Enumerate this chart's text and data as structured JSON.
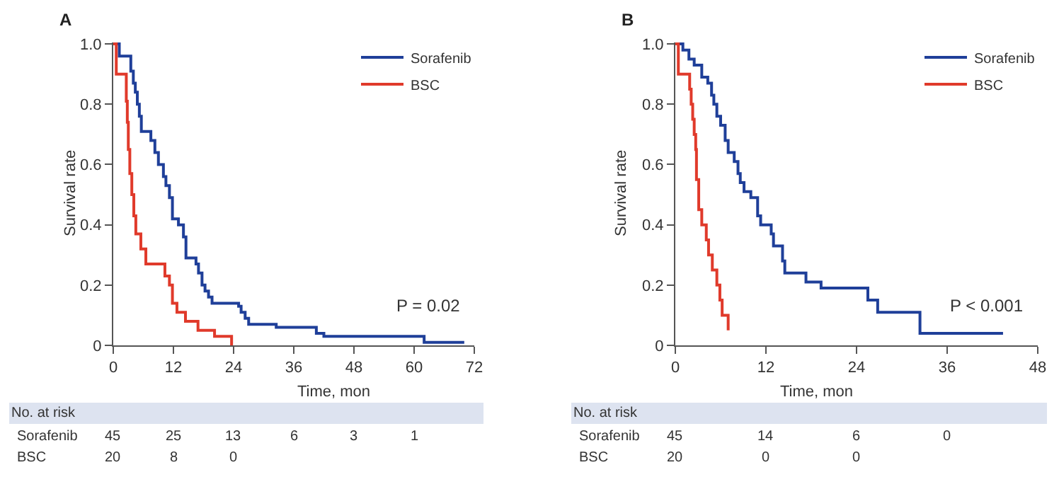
{
  "chart_data": [
    {
      "type": "step",
      "title": "A",
      "xlabel": "Time, mon",
      "ylabel": "Survival rate",
      "xlim": [
        0,
        72
      ],
      "xticks": [
        0,
        12,
        24,
        36,
        48,
        60,
        72
      ],
      "ylim": [
        0,
        1.0
      ],
      "yticks": [
        0,
        0.2,
        0.4,
        0.6,
        0.8,
        {
          "value": 1.0,
          "label": "1.0"
        }
      ],
      "grid": false,
      "legend": "top right",
      "marker": "none",
      "line_style": "solid",
      "series": [
        {
          "name": "Sorafenib",
          "color": "#1f3f99",
          "x": [
            0,
            1.2,
            3.5,
            4.0,
            4.4,
            4.8,
            5.2,
            5.6,
            7.5,
            8.3,
            9.0,
            10.0,
            10.5,
            11.2,
            11.8,
            13.0,
            14.0,
            14.5,
            16.5,
            17.0,
            17.7,
            18.3,
            19.0,
            19.7,
            25.0,
            25.5,
            26.3,
            27.0,
            32.5,
            40.5,
            42.0,
            62.0,
            70.0
          ],
          "values": [
            1.0,
            0.96,
            0.91,
            0.87,
            0.84,
            0.8,
            0.76,
            0.71,
            0.68,
            0.64,
            0.6,
            0.56,
            0.53,
            0.49,
            0.42,
            0.4,
            0.36,
            0.29,
            0.27,
            0.24,
            0.2,
            0.18,
            0.16,
            0.14,
            0.13,
            0.11,
            0.09,
            0.07,
            0.06,
            0.04,
            0.03,
            0.01,
            0.01
          ]
        },
        {
          "name": "BSC",
          "color": "#e03a2b",
          "x": [
            0,
            0.6,
            2.6,
            2.8,
            3.0,
            3.3,
            3.7,
            4.1,
            4.5,
            5.5,
            6.5,
            10.3,
            11.2,
            11.8,
            12.7,
            14.4,
            16.9,
            20.2,
            23.6
          ],
          "values": [
            1.0,
            0.9,
            0.81,
            0.74,
            0.65,
            0.57,
            0.5,
            0.43,
            0.37,
            0.32,
            0.27,
            0.23,
            0.2,
            0.14,
            0.11,
            0.08,
            0.05,
            0.03,
            0.0
          ]
        }
      ],
      "annotations": [
        "P = 0.02",
        "No. at risk",
        "Sorafenib",
        "45",
        "25",
        "13",
        "6",
        "3",
        "1",
        "BSC",
        "20",
        "8",
        "0"
      ]
    },
    {
      "type": "step",
      "title": "B",
      "xlabel": "Time, mon",
      "ylabel": "Survival rate",
      "xlim": [
        0,
        48
      ],
      "xticks": [
        0,
        12,
        24,
        36,
        48
      ],
      "ylim": [
        0,
        1.0
      ],
      "yticks": [
        0,
        0.2,
        0.4,
        0.6,
        0.8,
        {
          "value": 1.0,
          "label": "1.0"
        }
      ],
      "grid": false,
      "legend": "top right",
      "marker": "none",
      "line_style": "solid",
      "series": [
        {
          "name": "Sorafenib",
          "color": "#1f3f99",
          "x": [
            0,
            1.0,
            1.8,
            2.5,
            3.5,
            4.3,
            4.8,
            5.1,
            5.5,
            6.0,
            6.6,
            7.0,
            7.8,
            8.3,
            8.6,
            9.1,
            10.0,
            10.9,
            11.3,
            12.7,
            13.0,
            14.2,
            14.5,
            17.3,
            19.3,
            25.5,
            26.8,
            32.4,
            43.4
          ],
          "values": [
            1.0,
            0.98,
            0.95,
            0.93,
            0.89,
            0.87,
            0.83,
            0.8,
            0.76,
            0.73,
            0.68,
            0.64,
            0.61,
            0.57,
            0.54,
            0.51,
            0.49,
            0.43,
            0.4,
            0.37,
            0.33,
            0.28,
            0.24,
            0.21,
            0.19,
            0.15,
            0.11,
            0.04,
            0.04
          ]
        },
        {
          "name": "BSC",
          "color": "#e03a2b",
          "x": [
            0,
            0.4,
            1.9,
            2.1,
            2.3,
            2.5,
            2.7,
            2.8,
            3.1,
            3.5,
            4.1,
            4.4,
            4.9,
            5.5,
            5.9,
            6.2,
            7.0
          ],
          "values": [
            1.0,
            0.9,
            0.85,
            0.8,
            0.75,
            0.7,
            0.65,
            0.55,
            0.45,
            0.4,
            0.35,
            0.3,
            0.25,
            0.2,
            0.15,
            0.1,
            0.05
          ]
        }
      ],
      "annotations": [
        "P < 0.001",
        "No. at risk",
        "Sorafenib",
        "45",
        "14",
        "6",
        "0",
        "BSC",
        "20",
        "0",
        "0"
      ]
    }
  ]
}
